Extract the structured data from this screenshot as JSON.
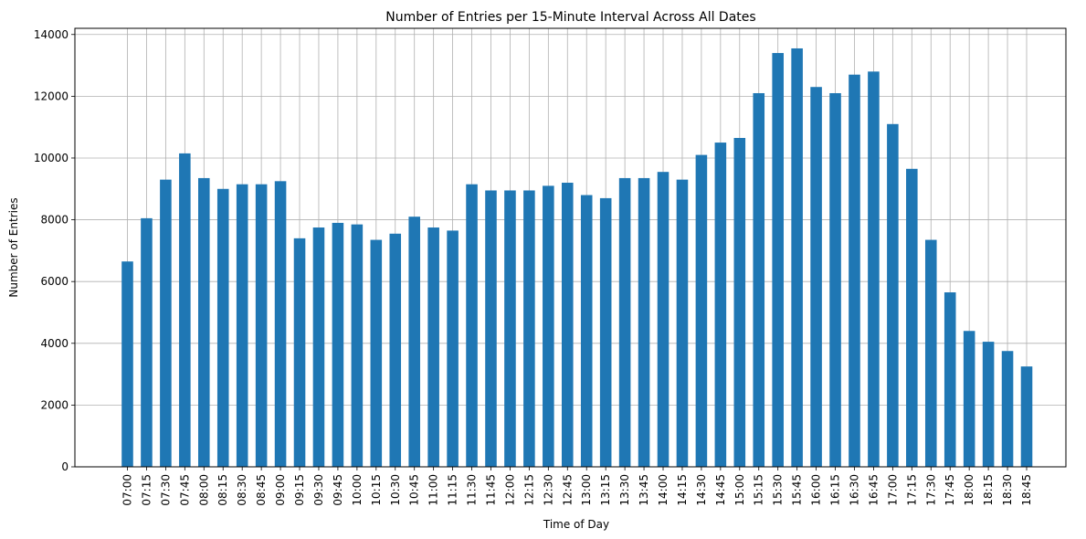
{
  "chart_data": {
    "type": "bar",
    "title": "Number of Entries per 15-Minute Interval Across All Dates",
    "xlabel": "Time of Day",
    "ylabel": "Number of Entries",
    "ylim": [
      0,
      14200
    ],
    "yticks": [
      "0",
      "2000",
      "4000",
      "6000",
      "8000",
      "10000",
      "12000",
      "14000"
    ],
    "grid": true,
    "bar_color": "#1f77b4",
    "categories": [
      "07:00",
      "07:15",
      "07:30",
      "07:45",
      "08:00",
      "08:15",
      "08:30",
      "08:45",
      "09:00",
      "09:15",
      "09:30",
      "09:45",
      "10:00",
      "10:15",
      "10:30",
      "10:45",
      "11:00",
      "11:15",
      "11:30",
      "11:45",
      "12:00",
      "12:15",
      "12:30",
      "12:45",
      "13:00",
      "13:15",
      "13:30",
      "13:45",
      "14:00",
      "14:15",
      "14:30",
      "14:45",
      "15:00",
      "15:15",
      "15:30",
      "15:45",
      "16:00",
      "16:15",
      "16:30",
      "16:45",
      "17:00",
      "17:15",
      "17:30",
      "17:45",
      "18:00",
      "18:15",
      "18:30",
      "18:45"
    ],
    "values": [
      6650,
      8050,
      9300,
      10150,
      9350,
      9000,
      9150,
      9150,
      9250,
      7400,
      7750,
      7900,
      7850,
      7350,
      7550,
      8100,
      7750,
      7650,
      9150,
      8950,
      8950,
      8950,
      9100,
      9200,
      8800,
      8700,
      9350,
      9350,
      9550,
      9300,
      10100,
      10500,
      10650,
      12100,
      13400,
      13550,
      12300,
      12100,
      12700,
      12800,
      11100,
      9650,
      7350,
      5650,
      4400,
      4050,
      3750,
      3250
    ]
  }
}
